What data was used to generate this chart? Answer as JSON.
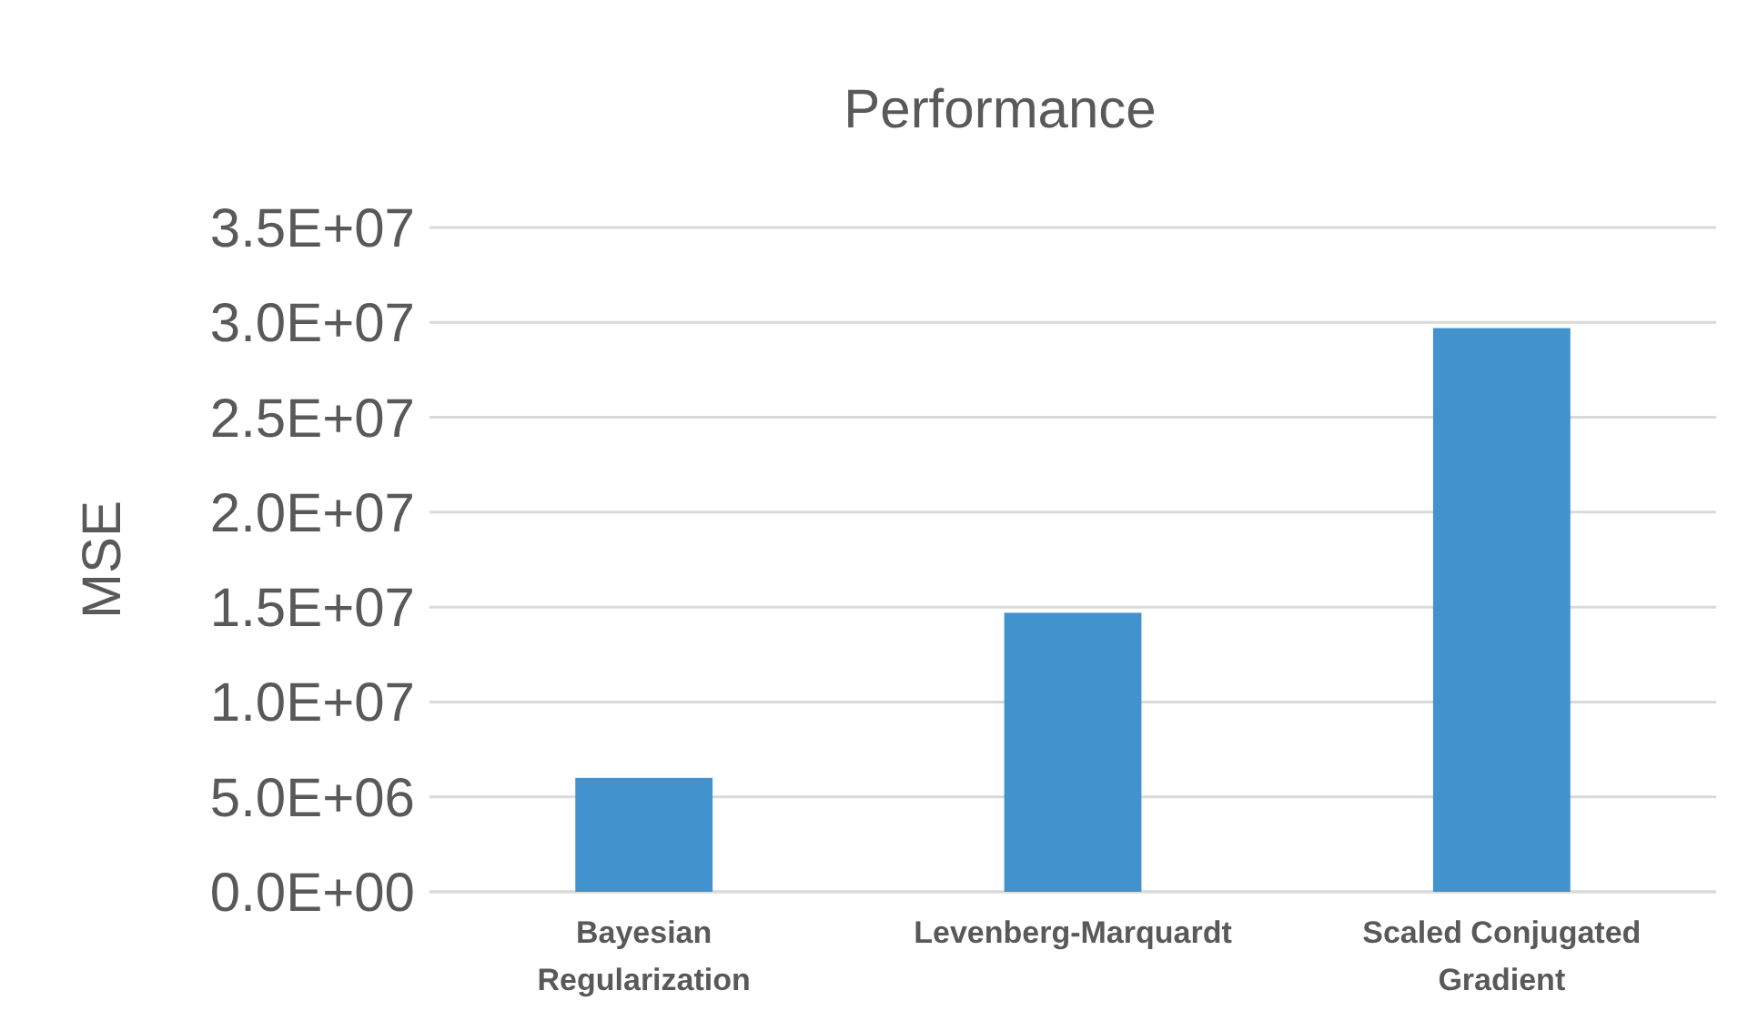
{
  "chart_data": {
    "type": "bar",
    "title": "Performance",
    "ylabel": "MSE",
    "categories": [
      "Bayesian Regularization",
      "Levenberg-Marquardt",
      "Scaled Conjugated Gradient"
    ],
    "values": [
      6000000.0,
      14700000.0,
      29700000.0
    ],
    "color": "#4292ce",
    "ylim": [
      0,
      35000000.0
    ],
    "yticks": [
      {
        "value": 0,
        "label": "0.0E+00"
      },
      {
        "value": 5000000.0,
        "label": "5.0E+06"
      },
      {
        "value": 10000000.0,
        "label": "1.0E+07"
      },
      {
        "value": 15000000.0,
        "label": "1.5E+07"
      },
      {
        "value": 20000000.0,
        "label": "2.0E+07"
      },
      {
        "value": 25000000.0,
        "label": "2.5E+07"
      },
      {
        "value": 30000000.0,
        "label": "3.0E+07"
      },
      {
        "value": 35000000.0,
        "label": "3.5E+07"
      }
    ],
    "grid": "y"
  }
}
